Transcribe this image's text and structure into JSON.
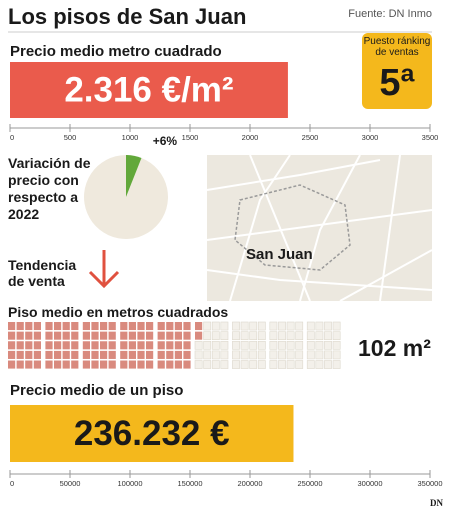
{
  "header": {
    "title": "Los pisos de San Juan",
    "source": "Fuente: DN Inmo",
    "logo": "DN"
  },
  "badge": {
    "label": "Puesto ránking de ventas",
    "value": "5ª"
  },
  "trend": {
    "label": "Tendencia de venta"
  },
  "map": {
    "label": "San Juan"
  },
  "chart_data": [
    {
      "type": "bar",
      "title": "Precio medio metro cuadrado",
      "values": [
        2316
      ],
      "value_labels": [
        "2.316 €/m²"
      ],
      "color": "#ea5b4c",
      "label_color": "#ffffff",
      "xlim": [
        0,
        3500
      ],
      "xticks": [
        0,
        500,
        1000,
        1500,
        2000,
        2500,
        3000,
        3500
      ]
    },
    {
      "type": "pie",
      "title": "Variación de precio con respecto a 2022",
      "values": [
        6,
        94
      ],
      "value_labels": [
        "+6%",
        null
      ],
      "colors": [
        "#62a83a",
        "#efe9dd"
      ]
    },
    {
      "type": "waffle",
      "title": "Piso medio en metros cuadrados",
      "values": [
        102
      ],
      "value_labels": [
        "102 m²"
      ],
      "color": "#d98a7e"
    },
    {
      "type": "bar",
      "title": "Precio medio de un piso",
      "values": [
        236232
      ],
      "value_labels": [
        "236.232 €"
      ],
      "color": "#f4b81c",
      "label_color": "#1a1a1a",
      "xlim": [
        0,
        350000
      ],
      "xticks": [
        0,
        50000,
        100000,
        150000,
        200000,
        250000,
        300000,
        350000
      ]
    }
  ]
}
